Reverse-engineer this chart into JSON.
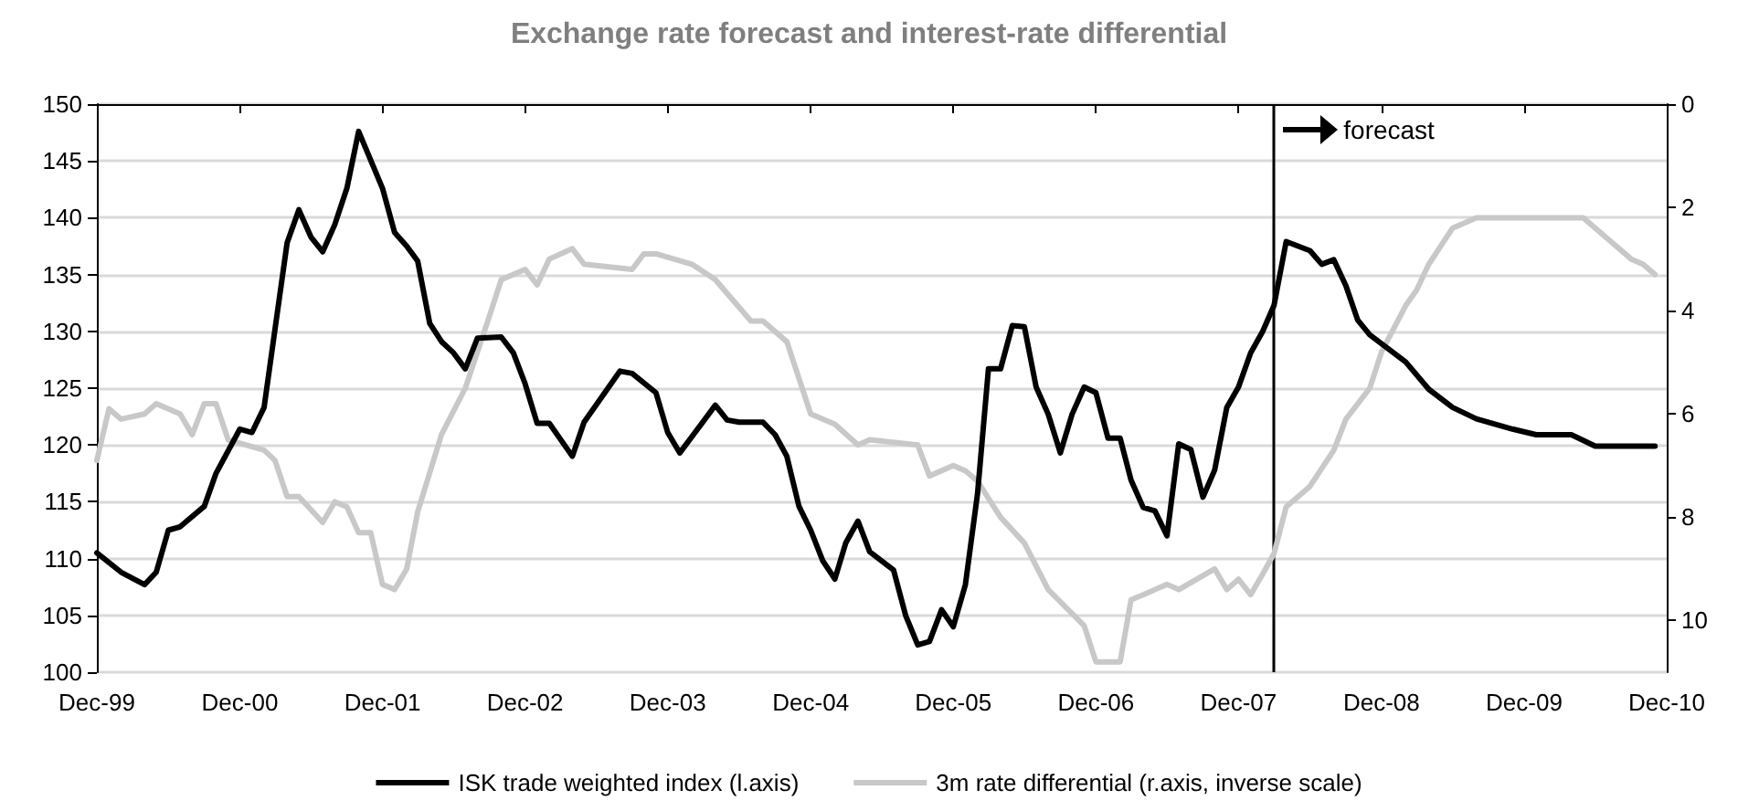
{
  "chart_data": {
    "type": "line",
    "title": "Exchange rate forecast and interest-rate differential",
    "xlim": [
      "1999-12",
      "2010-12"
    ],
    "xticks": [
      {
        "value": "1999-12",
        "label": "Dec-99"
      },
      {
        "value": "2000-12",
        "label": "Dec-00"
      },
      {
        "value": "2001-12",
        "label": "Dec-01"
      },
      {
        "value": "2002-12",
        "label": "Dec-02"
      },
      {
        "value": "2003-12",
        "label": "Dec-03"
      },
      {
        "value": "2004-12",
        "label": "Dec-04"
      },
      {
        "value": "2005-12",
        "label": "Dec-05"
      },
      {
        "value": "2006-12",
        "label": "Dec-06"
      },
      {
        "value": "2007-12",
        "label": "Dec-07"
      },
      {
        "value": "2008-12",
        "label": "Dec-08"
      },
      {
        "value": "2009-12",
        "label": "Dec-09"
      },
      {
        "value": "2010-12",
        "label": "Dec-10"
      }
    ],
    "ylim": [
      100,
      150
    ],
    "yticks": [
      100,
      105,
      110,
      115,
      120,
      125,
      130,
      135,
      140,
      145,
      150
    ],
    "y2lim": [
      11,
      0
    ],
    "y2ticks": [
      0,
      2,
      4,
      6,
      8,
      10
    ],
    "grid": "y",
    "legend": "bottom",
    "marker": "none",
    "line_style": "solid",
    "ref_lines": [
      {
        "axis": "x",
        "value": "2008-03",
        "label": "forecast",
        "color": "#000000"
      }
    ],
    "series": [
      {
        "name": "ISK trade weighted index (l.axis)",
        "color": "#000000",
        "x": [
          "1999-12",
          "2000-02",
          "2000-04",
          "2000-05",
          "2000-06",
          "2000-07",
          "2000-09",
          "2000-10",
          "2000-12",
          "2001-01",
          "2001-02",
          "2001-03",
          "2001-04",
          "2001-05",
          "2001-06",
          "2001-07",
          "2001-08",
          "2001-09",
          "2001-10",
          "2001-12",
          "2002-01",
          "2002-02",
          "2002-03",
          "2002-04",
          "2002-05",
          "2002-06",
          "2002-07",
          "2002-08",
          "2002-10",
          "2002-11",
          "2002-12",
          "2003-01",
          "2003-02",
          "2003-04",
          "2003-05",
          "2003-08",
          "2003-09",
          "2003-11",
          "2003-12",
          "2004-01",
          "2004-04",
          "2004-05",
          "2004-06",
          "2004-08",
          "2004-09",
          "2004-10",
          "2004-11",
          "2004-12",
          "2005-01",
          "2005-02",
          "2005-03",
          "2005-04",
          "2005-05",
          "2005-07",
          "2005-08",
          "2005-09",
          "2005-10",
          "2005-11",
          "2005-12",
          "2006-01",
          "2006-02",
          "2006-03",
          "2006-04",
          "2006-05",
          "2006-06",
          "2006-07",
          "2006-08",
          "2006-09",
          "2006-10",
          "2006-11",
          "2006-12",
          "2007-01",
          "2007-02",
          "2007-03",
          "2007-04",
          "2007-05",
          "2007-06",
          "2007-07",
          "2007-08",
          "2007-09",
          "2007-10",
          "2007-11",
          "2007-12",
          "2008-01",
          "2008-02",
          "2008-03",
          "2008-04",
          "2008-06",
          "2008-07",
          "2008-08",
          "2008-09",
          "2008-10",
          "2008-11",
          "2009-02",
          "2009-04",
          "2009-06",
          "2009-08",
          "2009-11",
          "2010-01",
          "2010-04",
          "2010-06",
          "2010-11"
        ],
        "values": [
          110.5,
          108.8,
          107.7,
          108.8,
          112.5,
          112.8,
          114.6,
          117.5,
          121.4,
          121.1,
          123.3,
          130.2,
          137.8,
          140.7,
          138.3,
          137,
          139.4,
          142.6,
          147.6,
          142.6,
          138.7,
          137.5,
          136.2,
          130.7,
          129.1,
          128.1,
          126.7,
          129.4,
          129.5,
          128.1,
          125.4,
          121.9,
          121.9,
          119,
          122,
          126.5,
          126.3,
          124.6,
          121.1,
          119.3,
          123.5,
          122.2,
          122,
          122,
          120.9,
          119,
          114.6,
          112.5,
          109.8,
          108.2,
          111.4,
          113.3,
          110.6,
          109,
          105,
          102.4,
          102.7,
          105.5,
          104,
          107.7,
          115.7,
          126.7,
          126.7,
          130.5,
          130.4,
          125.1,
          122.7,
          119.3,
          122.7,
          125.1,
          124.6,
          120.6,
          120.6,
          116.9,
          114.5,
          114.2,
          112,
          120.1,
          119.6,
          115.4,
          117.8,
          123.3,
          125.1,
          128.1,
          130,
          132.3,
          137.9,
          137.1,
          135.9,
          136.3,
          134,
          131,
          129.7,
          127.3,
          124.9,
          123.3,
          122.3,
          121.4,
          120.9,
          120.9,
          119.9,
          119.9
        ]
      },
      {
        "name": "3m rate differential (r.axis, inverse scale)",
        "color": "#c8c8c8",
        "axis": "y2",
        "x": [
          "1999-12",
          "2000-01",
          "2000-02",
          "2000-04",
          "2000-05",
          "2000-07",
          "2000-08",
          "2000-09",
          "2000-10",
          "2000-11",
          "2001-02",
          "2001-03",
          "2001-04",
          "2001-05",
          "2001-07",
          "2001-08",
          "2001-09",
          "2001-10",
          "2001-11",
          "2001-12",
          "2002-01",
          "2002-02",
          "2002-03",
          "2002-05",
          "2002-07",
          "2002-09",
          "2002-10",
          "2002-12",
          "2003-01",
          "2003-02",
          "2003-04",
          "2003-05",
          "2003-09",
          "2003-10",
          "2003-11",
          "2004-02",
          "2004-04",
          "2004-07",
          "2004-08",
          "2004-10",
          "2004-12",
          "2005-02",
          "2005-04",
          "2005-05",
          "2005-09",
          "2005-10",
          "2005-12",
          "2006-01",
          "2006-02",
          "2006-04",
          "2006-06",
          "2006-08",
          "2006-11",
          "2006-12",
          "2007-02",
          "2007-03",
          "2007-04",
          "2007-06",
          "2007-07",
          "2007-10",
          "2007-11",
          "2007-12",
          "2008-01",
          "2008-02",
          "2008-03",
          "2008-04",
          "2008-06",
          "2008-08",
          "2008-09",
          "2008-11",
          "2008-12",
          "2009-02",
          "2009-03",
          "2009-04",
          "2009-06",
          "2009-08",
          "2010-05",
          "2010-06",
          "2010-09",
          "2010-10",
          "2010-11"
        ],
        "values": [
          6.9,
          5.9,
          6.1,
          6.0,
          5.8,
          6.0,
          6.4,
          5.8,
          5.8,
          6.5,
          6.7,
          6.9,
          7.6,
          7.6,
          8.1,
          7.7,
          7.8,
          8.3,
          8.3,
          9.3,
          9.4,
          9.0,
          7.9,
          6.4,
          5.5,
          4.1,
          3.4,
          3.2,
          3.5,
          3.0,
          2.8,
          3.1,
          3.2,
          2.9,
          2.9,
          3.1,
          3.4,
          4.2,
          4.2,
          4.6,
          6.0,
          6.2,
          6.6,
          6.5,
          6.6,
          7.2,
          7.0,
          7.1,
          7.3,
          8.0,
          8.5,
          9.4,
          10.1,
          10.8,
          10.8,
          9.6,
          9.5,
          9.3,
          9.4,
          9.0,
          9.4,
          9.2,
          9.5,
          9.1,
          8.7,
          7.8,
          7.4,
          6.7,
          6.1,
          5.5,
          4.8,
          3.9,
          3.6,
          3.1,
          2.4,
          2.2,
          2.2,
          2.4,
          3.0,
          3.1,
          3.3
        ]
      }
    ]
  }
}
